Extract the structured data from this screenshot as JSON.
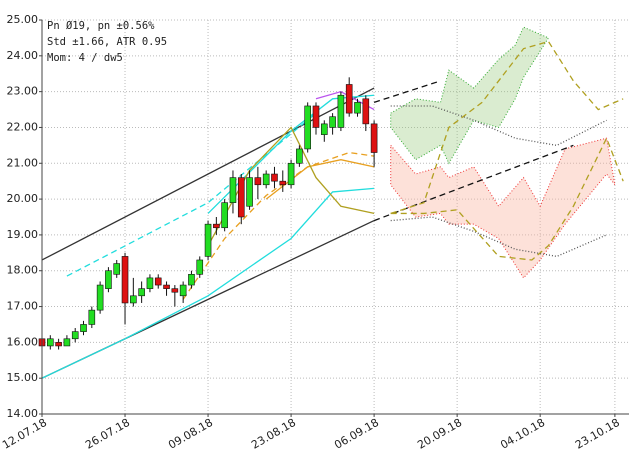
{
  "chart_data": {
    "type": "candlestick",
    "annotations": [
      "Pn  Ø19, pn ±0.56%",
      "Std ±1.66, ATR 0.95",
      "Mom: 4 / dw5"
    ],
    "x": [
      0,
      1,
      2,
      3,
      4,
      5,
      6,
      7,
      8,
      9,
      10,
      11,
      12,
      13,
      14,
      15,
      16,
      17,
      18,
      19,
      20,
      21,
      22,
      23,
      24,
      25,
      26,
      27,
      28,
      29,
      30,
      31,
      32,
      33,
      34,
      35,
      36,
      37,
      38,
      39,
      40
    ],
    "open": [
      16.1,
      15.9,
      16.0,
      15.9,
      16.1,
      16.3,
      16.5,
      16.9,
      17.5,
      17.9,
      18.4,
      17.1,
      17.3,
      17.5,
      17.8,
      17.6,
      17.5,
      17.3,
      17.6,
      17.9,
      18.4,
      19.3,
      19.2,
      19.9,
      20.6,
      19.8,
      20.6,
      20.4,
      20.7,
      20.5,
      20.4,
      21.0,
      21.4,
      22.6,
      21.8,
      22.0,
      22.0,
      23.2,
      22.4,
      22.8,
      22.1
    ],
    "high": [
      16.3,
      16.2,
      16.1,
      16.2,
      16.4,
      16.6,
      17.0,
      17.7,
      18.1,
      18.3,
      18.5,
      17.8,
      17.7,
      17.9,
      17.9,
      17.7,
      17.6,
      17.7,
      18.0,
      18.4,
      19.4,
      19.5,
      20.0,
      20.8,
      20.7,
      20.8,
      20.9,
      20.8,
      20.9,
      20.8,
      21.1,
      21.5,
      22.7,
      22.7,
      22.2,
      22.4,
      23.0,
      23.4,
      22.8,
      22.9,
      22.2
    ],
    "low": [
      15.9,
      15.8,
      15.8,
      15.9,
      16.0,
      16.2,
      16.4,
      16.8,
      17.4,
      17.8,
      16.5,
      17.0,
      17.1,
      17.4,
      17.5,
      17.3,
      17.0,
      17.1,
      17.5,
      17.8,
      18.3,
      19.0,
      19.1,
      19.6,
      19.3,
      19.7,
      20.0,
      20.3,
      20.3,
      20.2,
      20.3,
      20.9,
      21.3,
      21.8,
      21.6,
      21.8,
      21.9,
      22.3,
      22.3,
      21.9,
      20.9
    ],
    "close": [
      15.9,
      16.1,
      15.9,
      16.1,
      16.3,
      16.5,
      16.9,
      17.6,
      18.0,
      18.2,
      17.1,
      17.3,
      17.5,
      17.8,
      17.6,
      17.5,
      17.4,
      17.6,
      17.9,
      18.3,
      19.3,
      19.2,
      19.9,
      20.6,
      19.5,
      20.6,
      20.4,
      20.7,
      20.5,
      20.4,
      21.0,
      21.4,
      22.6,
      22.0,
      22.1,
      22.3,
      22.9,
      22.4,
      22.7,
      22.1,
      21.3
    ],
    "up_color": "#22dd22",
    "down_color": "#dd1111",
    "lines": [
      {
        "color": "#333333",
        "dash": false,
        "x": [
          0,
          40
        ],
        "values": [
          18.3,
          23.1
        ]
      },
      {
        "color": "#333333",
        "dash": false,
        "x": [
          0,
          40
        ],
        "values": [
          15.0,
          19.4
        ]
      },
      {
        "color": "#111111",
        "dash": true,
        "x": [
          40,
          48
        ],
        "values": [
          22.7,
          23.3
        ]
      },
      {
        "color": "#111111",
        "dash": true,
        "x": [
          40,
          64
        ],
        "values": [
          19.4,
          21.5
        ]
      },
      {
        "color": "#555555",
        "dash": "dot",
        "x": [
          42,
          47,
          52,
          57,
          62,
          68
        ],
        "values": [
          22.6,
          22.6,
          22.2,
          21.7,
          21.5,
          22.2
        ]
      },
      {
        "color": "#555555",
        "dash": "dot",
        "x": [
          42,
          47,
          52,
          57,
          62,
          68
        ],
        "values": [
          19.4,
          19.5,
          19.1,
          18.6,
          18.4,
          19.0
        ]
      },
      {
        "color": "#22dddd",
        "dash": true,
        "x": [
          3,
          20,
          33
        ],
        "values": [
          17.85,
          19.9,
          22.4
        ]
      },
      {
        "color": "#22dddd",
        "dash": false,
        "x": [
          0,
          10,
          20,
          30,
          35,
          40
        ],
        "values": [
          15.0,
          16.1,
          17.3,
          18.9,
          20.2,
          20.3
        ]
      },
      {
        "color": "#22dddd",
        "dash": false,
        "x": [
          20,
          30,
          35,
          40
        ],
        "values": [
          19.6,
          21.9,
          22.8,
          22.9
        ]
      },
      {
        "color": "#e8a020",
        "dash": true,
        "x": [
          17,
          22,
          27,
          32,
          37,
          40
        ],
        "values": [
          17.2,
          18.9,
          20.1,
          20.9,
          21.3,
          21.2
        ]
      },
      {
        "color": "#e8a020",
        "dash": false,
        "x": [
          27,
          32,
          36,
          40
        ],
        "values": [
          20.0,
          20.9,
          21.1,
          20.9
        ]
      },
      {
        "color": "#b0a020",
        "dash": false,
        "x": [
          20,
          25,
          30,
          33,
          36,
          40
        ],
        "values": [
          18.7,
          20.8,
          22.0,
          20.6,
          19.8,
          19.6
        ]
      },
      {
        "color": "#bb55ee",
        "dash": false,
        "x": [
          33,
          36,
          40
        ],
        "values": [
          22.8,
          23.0,
          22.5
        ]
      },
      {
        "color": "#b0a020",
        "dash": true,
        "x": [
          42,
          46,
          49,
          53,
          58,
          61,
          64,
          67,
          70
        ],
        "values": [
          19.6,
          19.9,
          22.0,
          22.7,
          24.2,
          24.4,
          23.3,
          22.5,
          22.8
        ]
      },
      {
        "color": "#b0a020",
        "dash": true,
        "x": [
          42,
          46,
          50,
          55,
          59,
          61,
          64,
          68,
          70
        ],
        "values": [
          19.6,
          19.6,
          19.7,
          18.4,
          18.3,
          18.7,
          19.8,
          21.7,
          20.5
        ]
      }
    ],
    "areas": [
      {
        "color": "#33aa33",
        "fill": "rgba(150,200,120,0.35)",
        "x": [
          42,
          45,
          48,
          49,
          52,
          55,
          57,
          58,
          61
        ],
        "upper": [
          22.4,
          22.8,
          22.7,
          23.6,
          23.1,
          23.9,
          24.3,
          24.8,
          24.5
        ],
        "lower": [
          22.0,
          21.1,
          21.5,
          21.0,
          22.2,
          22.0,
          22.8,
          23.4,
          24.5
        ]
      },
      {
        "color": "#ee3333",
        "fill": "rgba(250,180,160,0.4)",
        "x": [
          42,
          45,
          48,
          49,
          52,
          55,
          58,
          60,
          63,
          68,
          69
        ],
        "upper": [
          21.5,
          20.7,
          20.9,
          20.6,
          20.9,
          19.8,
          20.6,
          19.8,
          21.4,
          21.7,
          20.4
        ],
        "lower": [
          20.4,
          19.5,
          19.6,
          19.3,
          19.3,
          18.9,
          17.8,
          18.3,
          19.3,
          20.7,
          20.4
        ]
      }
    ],
    "xlim": [
      0,
      70.7
    ],
    "xticks": [
      {
        "value": 0,
        "label": "12.07.18"
      },
      {
        "value": 10,
        "label": "26.07.18"
      },
      {
        "value": 20,
        "label": "09.08.18"
      },
      {
        "value": 30,
        "label": "23.08.18"
      },
      {
        "value": 40,
        "label": "06.09.18"
      },
      {
        "value": 50,
        "label": "20.09.18"
      },
      {
        "value": 60,
        "label": "04.10.18"
      },
      {
        "value": 69,
        "label": "23.10.18"
      }
    ],
    "ylim": [
      14,
      25
    ],
    "yticks": [
      {
        "value": 14,
        "label": "14.00"
      },
      {
        "value": 15,
        "label": "15.00"
      },
      {
        "value": 16,
        "label": "16.00"
      },
      {
        "value": 17,
        "label": "17.00"
      },
      {
        "value": 18,
        "label": "18.00"
      },
      {
        "value": 19,
        "label": "19.00"
      },
      {
        "value": 20,
        "label": "20.00"
      },
      {
        "value": 21,
        "label": "21.00"
      },
      {
        "value": 22,
        "label": "22.00"
      },
      {
        "value": 23,
        "label": "23.00"
      },
      {
        "value": 24,
        "label": "24.00"
      },
      {
        "value": 25,
        "label": "25.00"
      }
    ],
    "grid": true
  }
}
